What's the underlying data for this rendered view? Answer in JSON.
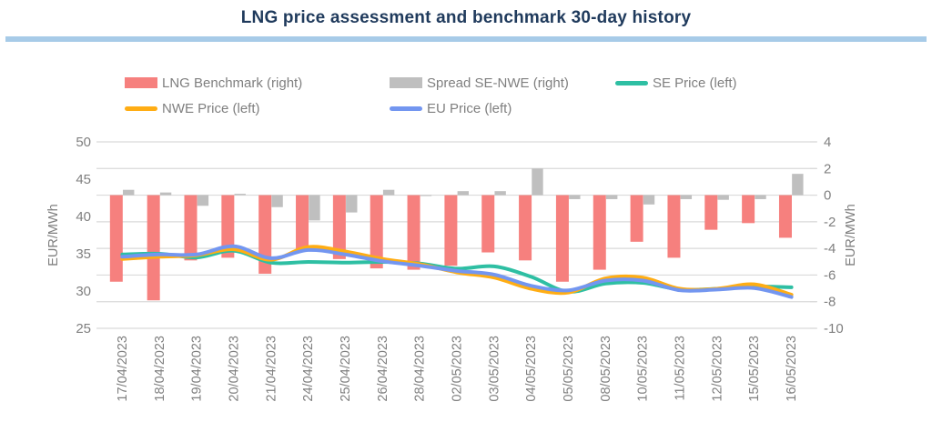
{
  "title": "LNG price assessment and benchmark 30-day history",
  "legend": [
    {
      "label": "LNG Benchmark (right)",
      "type": "bar",
      "color": "#F6807E"
    },
    {
      "label": "Spread SE-NWE (right)",
      "type": "bar",
      "color": "#BFBFBF"
    },
    {
      "label": "SE Price (left)",
      "type": "line",
      "color": "#2EBFA3"
    },
    {
      "label": "NWE Price (left)",
      "type": "line",
      "color": "#FFAD14"
    },
    {
      "label": "EU Price (left)",
      "type": "line",
      "color": "#7396F0"
    }
  ],
  "chart_data": {
    "type": "combo bar+line, dual axis",
    "categories": [
      "17/04/2023",
      "18/04/2023",
      "19/04/2023",
      "20/04/2023",
      "21/04/2023",
      "24/04/2023",
      "25/04/2023",
      "26/04/2023",
      "28/04/2023",
      "02/05/2023",
      "03/05/2023",
      "04/05/2023",
      "05/05/2023",
      "08/05/2023",
      "10/05/2023",
      "11/05/2023",
      "12/05/2023",
      "15/05/2023",
      "16/05/2023"
    ],
    "series": [
      {
        "name": "LNG Benchmark (right)",
        "type": "bar",
        "axis": "right",
        "color": "#F6807E",
        "values": [
          -6.5,
          -7.9,
          -4.9,
          -4.7,
          -5.9,
          -4.2,
          -4.8,
          -5.5,
          -5.6,
          -5.3,
          -4.3,
          -4.9,
          -6.5,
          -5.6,
          -3.5,
          -4.7,
          -2.6,
          -2.1,
          -3.2
        ]
      },
      {
        "name": "Spread SE-NWE (right)",
        "type": "bar",
        "axis": "right",
        "color": "#BFBFBF",
        "values": [
          0.4,
          0.2,
          -0.8,
          0.1,
          -0.9,
          -1.9,
          -1.3,
          0.4,
          -0.05,
          0.3,
          0.3,
          2.0,
          -0.3,
          -0.3,
          -0.7,
          -0.3,
          -0.35,
          -0.3,
          1.6
        ]
      },
      {
        "name": "SE Price (left)",
        "type": "line",
        "axis": "left",
        "color": "#2EBFA3",
        "values": [
          34.9,
          35.0,
          34.5,
          35.4,
          33.8,
          33.9,
          33.8,
          33.9,
          33.7,
          33.0,
          33.3,
          31.9,
          29.9,
          31.0,
          31.1,
          30.2,
          30.3,
          30.6,
          30.5
        ]
      },
      {
        "name": "NWE Price (left)",
        "type": "line",
        "axis": "left",
        "color": "#FFAD14",
        "values": [
          34.3,
          34.6,
          34.8,
          35.6,
          34.2,
          35.9,
          35.3,
          34.3,
          33.6,
          32.5,
          31.8,
          30.3,
          29.8,
          31.7,
          31.8,
          30.3,
          30.3,
          30.9,
          29.5
        ]
      },
      {
        "name": "EU Price (left)",
        "type": "line",
        "axis": "left",
        "color": "#7396F0",
        "values": [
          34.6,
          34.9,
          34.9,
          36.0,
          34.4,
          35.5,
          34.9,
          34.0,
          33.4,
          32.7,
          32.2,
          30.7,
          30.1,
          31.4,
          31.4,
          30.1,
          30.2,
          30.4,
          29.2
        ]
      }
    ],
    "left_axis": {
      "title": "EUR/MWh",
      "min": 25,
      "max": 50,
      "step": 5,
      "ticks": [
        50,
        45,
        40,
        35,
        30,
        25
      ]
    },
    "right_axis": {
      "title": "EUR/MWh",
      "min": -10,
      "max": 4,
      "step": 2,
      "ticks": [
        4,
        2,
        0,
        -2,
        -4,
        -6,
        -8,
        -10
      ]
    },
    "grid": "horizontal gridlines aligned to right-axis ticks",
    "legend_position": "top",
    "x_label_rotation": -90
  },
  "colors": {
    "title": "#1F3A5C",
    "divider": "#A7CBE8",
    "axis_text": "#7F7F7F",
    "gridline": "#DADADA",
    "background": "#FFFFFF"
  }
}
